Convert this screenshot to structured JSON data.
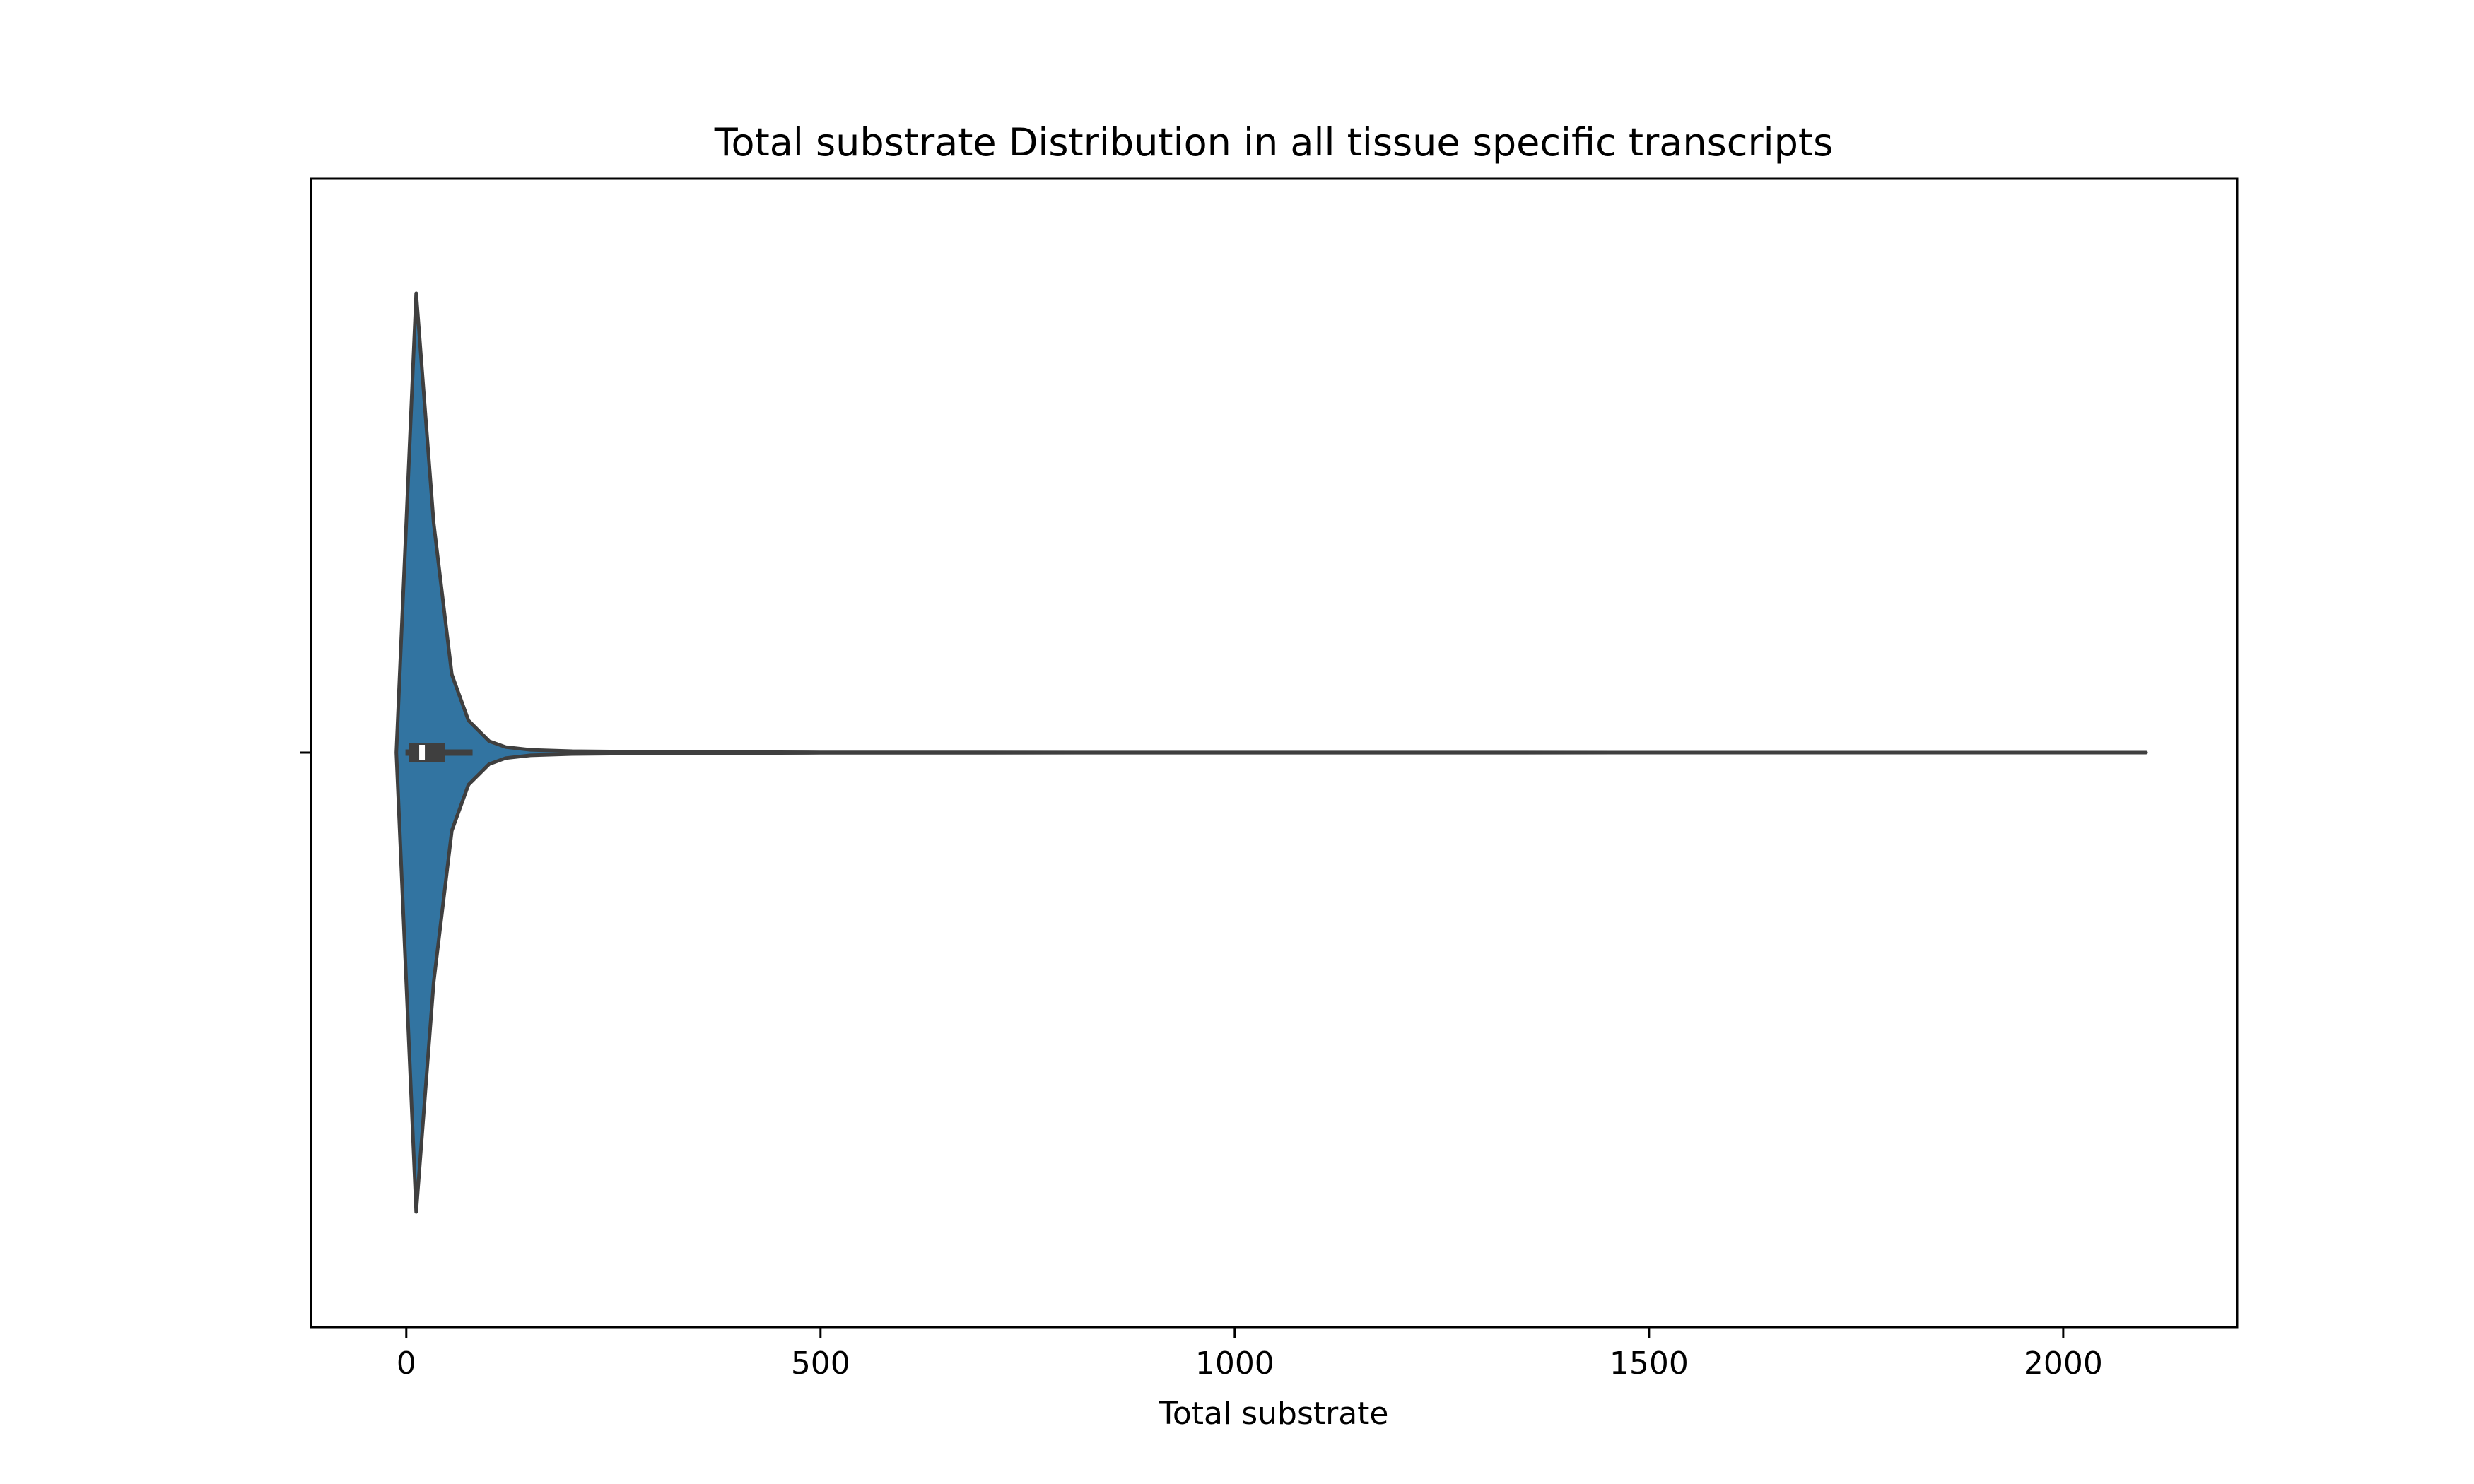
{
  "chart_data": {
    "type": "violin",
    "title": "Total substrate Distribution in all tissue specific transcripts",
    "xlabel": "Total substrate",
    "ylabel": "",
    "xlim": [
      -115,
      2210
    ],
    "x_ticks": [
      0,
      500,
      1000,
      1500,
      2000
    ],
    "x_tick_labels": [
      "0",
      "500",
      "1000",
      "1500",
      "2000"
    ],
    "grid": false,
    "legend": "none",
    "orientation": "horizontal",
    "colors": {
      "violin_fill": "#3274a1",
      "outline": "#3f3f3f",
      "box": "#3f3f3f",
      "median": "#ffffff",
      "axes": "#000000"
    },
    "density_profile": [
      {
        "x": -12,
        "half_width": 0
      },
      {
        "x": 12,
        "half_width": 1.0
      },
      {
        "x": 33,
        "half_width": 0.5
      },
      {
        "x": 55,
        "half_width": 0.17
      },
      {
        "x": 75,
        "half_width": 0.07
      },
      {
        "x": 100,
        "half_width": 0.025
      },
      {
        "x": 120,
        "half_width": 0.012
      },
      {
        "x": 150,
        "half_width": 0.006
      },
      {
        "x": 200,
        "half_width": 0.003
      },
      {
        "x": 300,
        "half_width": 0.0015
      },
      {
        "x": 500,
        "half_width": 0.0005
      },
      {
        "x": 1000,
        "half_width": 0.0002
      },
      {
        "x": 2100,
        "half_width": 0
      }
    ],
    "box": {
      "whisker_low": -1,
      "q1": 3,
      "median": 19,
      "q3": 47,
      "whisker_high": 80
    }
  }
}
